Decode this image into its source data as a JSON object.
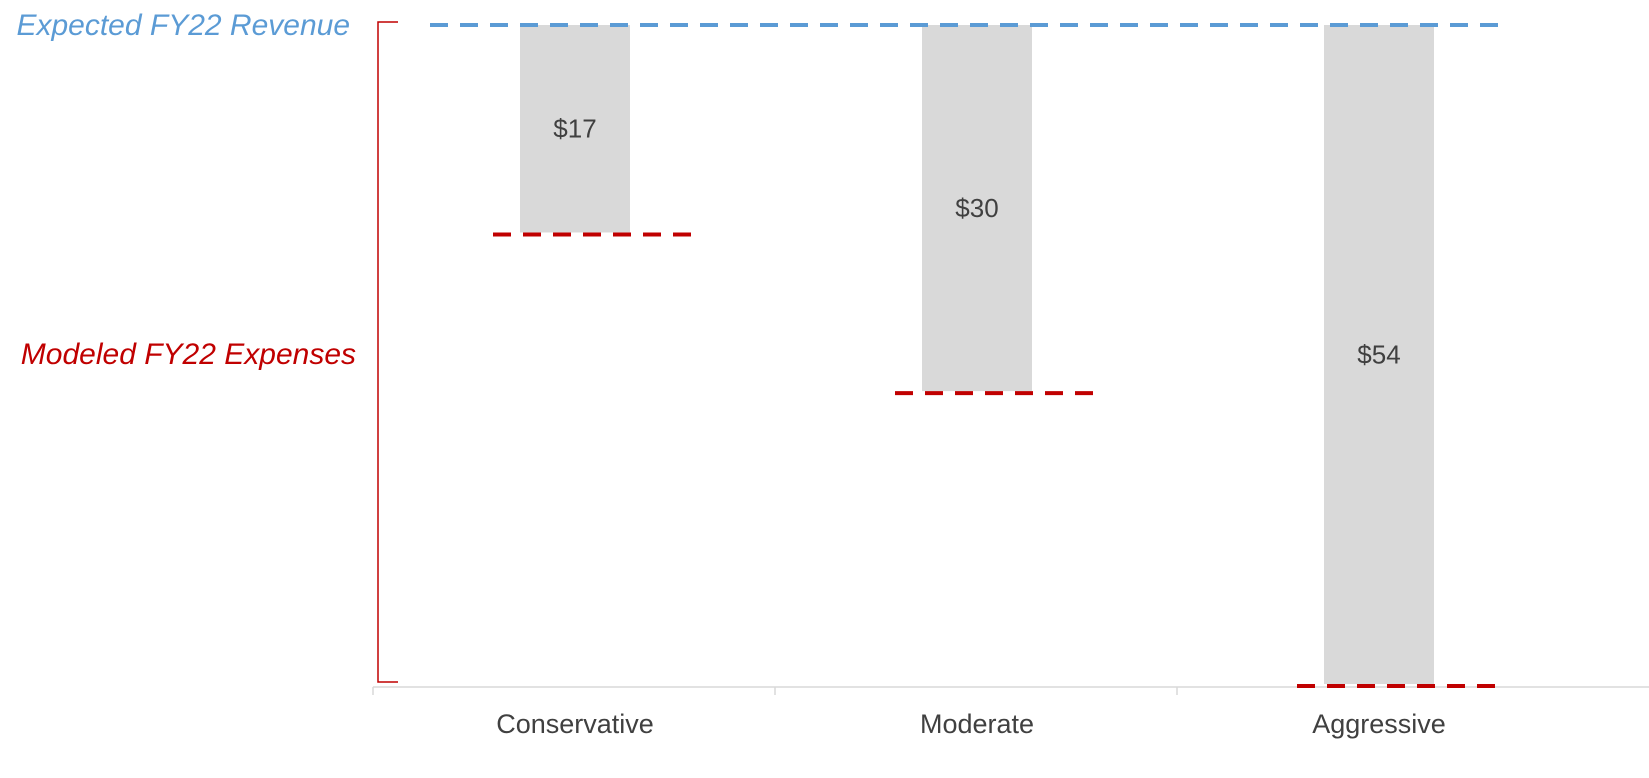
{
  "chart_data": {
    "type": "bar",
    "subtype": "waterfall-gap",
    "categories": [
      "Conservative",
      "Moderate",
      "Aggressive"
    ],
    "values": [
      17,
      30,
      54
    ],
    "value_labels": [
      "$17",
      "$30",
      "$54"
    ],
    "ylim": [
      0,
      54
    ],
    "grid": false,
    "legend": "none",
    "reference_lines": {
      "revenue_label": "Expected FY22 Revenue",
      "expenses_label": "Modeled FY22 Expenses"
    },
    "colors": {
      "bar": "#d9d9d9",
      "revenue_line": "#5b9bd5",
      "expense_line": "#c00000",
      "axis": "#d9d9d9",
      "text": "#404040"
    }
  }
}
